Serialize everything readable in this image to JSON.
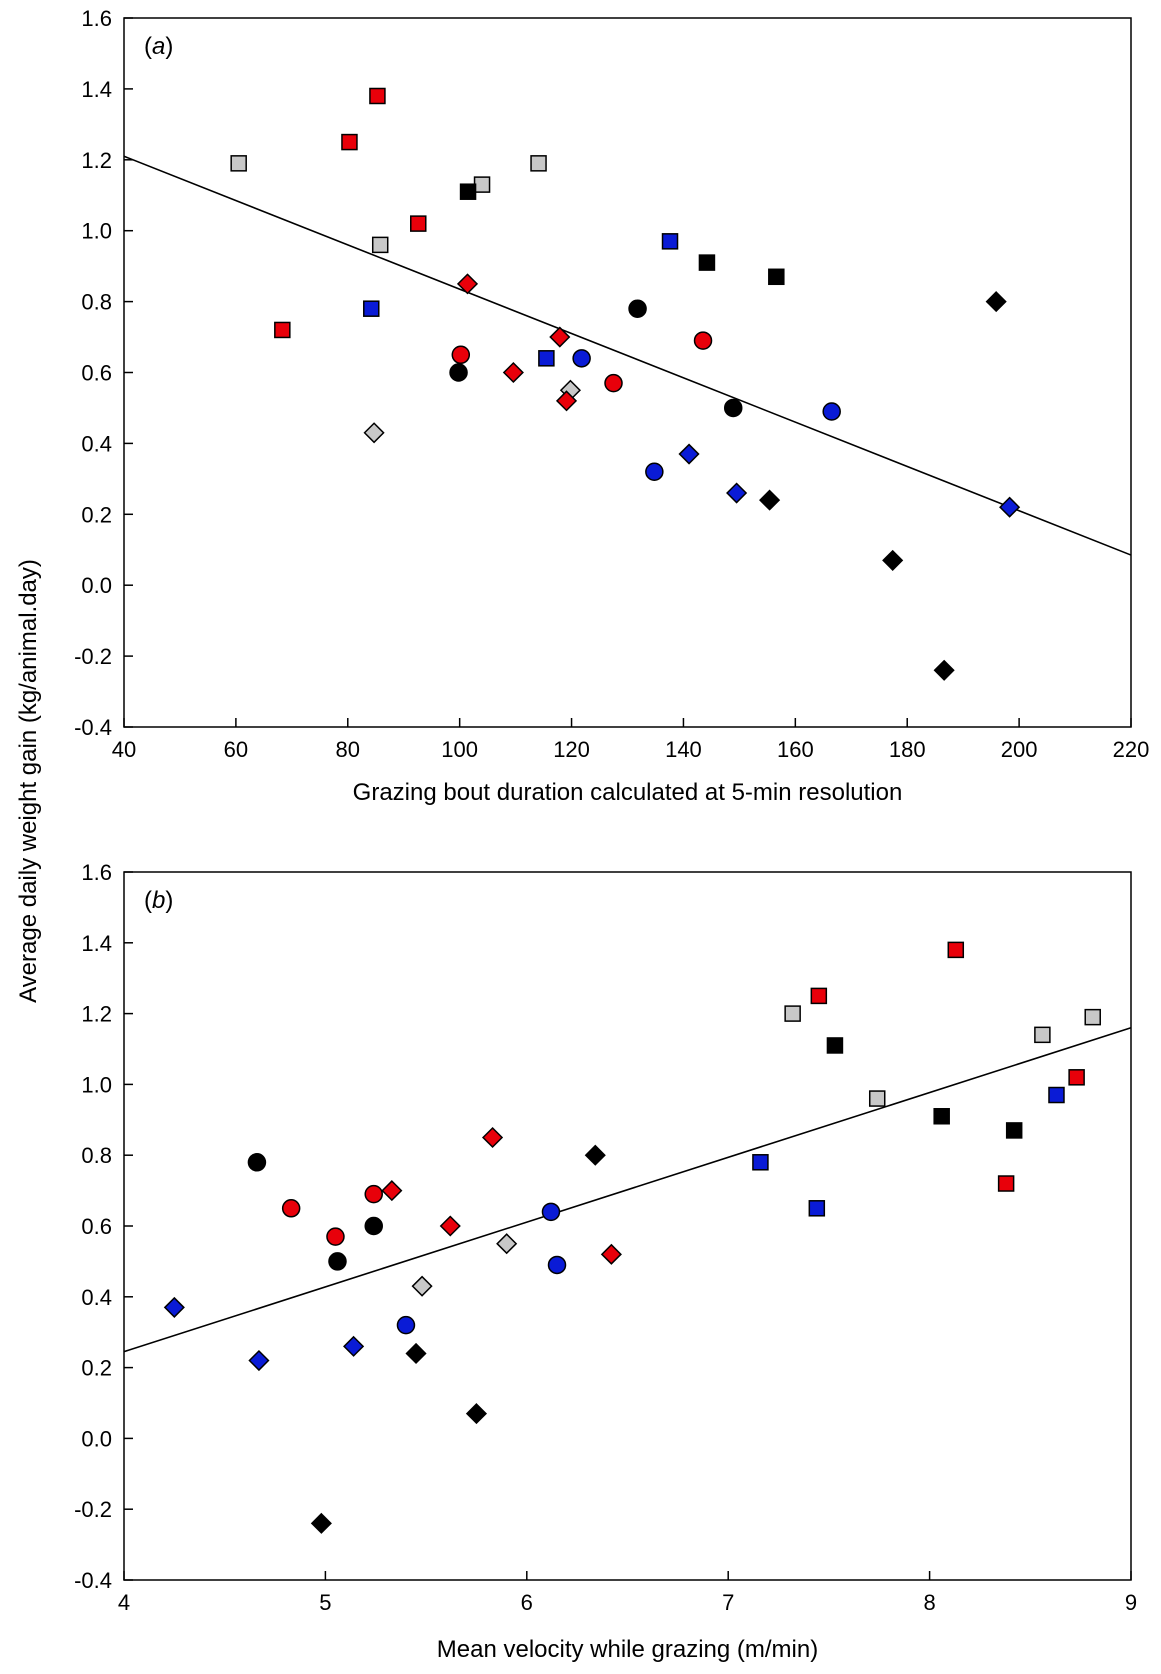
{
  "ylabel": "Average daily weight gain (kg/animal.day)",
  "chart_data": [
    {
      "type": "scatter",
      "panel": "a",
      "xlabel": "Grazing bout duration calculated at 5-min resolution",
      "ylabel": "Average daily weight gain (kg/animal.day)",
      "xlim": [
        40,
        220
      ],
      "ylim": [
        -0.4,
        1.6
      ],
      "xticks": [
        40,
        60,
        80,
        100,
        120,
        140,
        160,
        180,
        200,
        220
      ],
      "yticks": [
        -0.4,
        -0.2,
        0.0,
        0.2,
        0.4,
        0.6,
        0.8,
        1.0,
        1.2,
        1.4,
        1.6
      ],
      "ytick_labels": [
        "-0.4",
        "-0.2",
        "0.0",
        "0.2",
        "0.4",
        "0.6",
        "0.8",
        "1.0",
        "1.2",
        "1.4",
        "1.6"
      ],
      "grid": false,
      "trendline": [
        [
          40,
          1.21
        ],
        [
          220,
          0.085
        ]
      ],
      "colors": {
        "red": "#e8000a",
        "blue": "#0a1bd6",
        "black": "#000000",
        "gray": "#c8c8c8"
      },
      "points": [
        {
          "x": 60.5,
          "y": 1.19,
          "shape": "square",
          "color": "gray"
        },
        {
          "x": 85.8,
          "y": 0.96,
          "shape": "square",
          "color": "gray"
        },
        {
          "x": 104,
          "y": 1.13,
          "shape": "square",
          "color": "gray"
        },
        {
          "x": 114.1,
          "y": 1.19,
          "shape": "square",
          "color": "gray"
        },
        {
          "x": 68.3,
          "y": 0.72,
          "shape": "square",
          "color": "red"
        },
        {
          "x": 80.3,
          "y": 1.25,
          "shape": "square",
          "color": "red"
        },
        {
          "x": 85.3,
          "y": 1.38,
          "shape": "square",
          "color": "red"
        },
        {
          "x": 92.6,
          "y": 1.02,
          "shape": "square",
          "color": "red"
        },
        {
          "x": 101.5,
          "y": 1.11,
          "shape": "square",
          "color": "black"
        },
        {
          "x": 144.2,
          "y": 0.91,
          "shape": "square",
          "color": "black"
        },
        {
          "x": 156.6,
          "y": 0.87,
          "shape": "square",
          "color": "black"
        },
        {
          "x": 84.2,
          "y": 0.78,
          "shape": "square",
          "color": "blue"
        },
        {
          "x": 115.5,
          "y": 0.64,
          "shape": "square",
          "color": "blue"
        },
        {
          "x": 137.6,
          "y": 0.97,
          "shape": "square",
          "color": "blue"
        },
        {
          "x": 99.8,
          "y": 0.6,
          "shape": "circle",
          "color": "black"
        },
        {
          "x": 131.8,
          "y": 0.78,
          "shape": "circle",
          "color": "black"
        },
        {
          "x": 148.9,
          "y": 0.5,
          "shape": "circle",
          "color": "black"
        },
        {
          "x": 100.2,
          "y": 0.65,
          "shape": "circle",
          "color": "red"
        },
        {
          "x": 127.5,
          "y": 0.57,
          "shape": "circle",
          "color": "red"
        },
        {
          "x": 143.5,
          "y": 0.69,
          "shape": "circle",
          "color": "red"
        },
        {
          "x": 121.8,
          "y": 0.64,
          "shape": "circle",
          "color": "blue"
        },
        {
          "x": 134.8,
          "y": 0.32,
          "shape": "circle",
          "color": "blue"
        },
        {
          "x": 166.5,
          "y": 0.49,
          "shape": "circle",
          "color": "blue"
        },
        {
          "x": 84.7,
          "y": 0.43,
          "shape": "diamond",
          "color": "gray"
        },
        {
          "x": 119.8,
          "y": 0.55,
          "shape": "diamond",
          "color": "gray"
        },
        {
          "x": 101.4,
          "y": 0.85,
          "shape": "diamond",
          "color": "red"
        },
        {
          "x": 109.6,
          "y": 0.6,
          "shape": "diamond",
          "color": "red"
        },
        {
          "x": 117.9,
          "y": 0.7,
          "shape": "diamond",
          "color": "red"
        },
        {
          "x": 119.1,
          "y": 0.52,
          "shape": "diamond",
          "color": "red"
        },
        {
          "x": 141,
          "y": 0.37,
          "shape": "diamond",
          "color": "blue"
        },
        {
          "x": 149.5,
          "y": 0.26,
          "shape": "diamond",
          "color": "blue"
        },
        {
          "x": 198.3,
          "y": 0.22,
          "shape": "diamond",
          "color": "blue"
        },
        {
          "x": 155.4,
          "y": 0.24,
          "shape": "diamond",
          "color": "black"
        },
        {
          "x": 177.4,
          "y": 0.07,
          "shape": "diamond",
          "color": "black"
        },
        {
          "x": 186.6,
          "y": -0.24,
          "shape": "diamond",
          "color": "black"
        },
        {
          "x": 195.9,
          "y": 0.8,
          "shape": "diamond",
          "color": "black"
        }
      ]
    },
    {
      "type": "scatter",
      "panel": "b",
      "xlabel": "Mean velocity while grazing (m/min)",
      "ylabel": "Average daily weight gain (kg/animal.day)",
      "xlim": [
        4,
        9
      ],
      "ylim": [
        -0.4,
        1.6
      ],
      "xticks": [
        4,
        5,
        6,
        7,
        8,
        9
      ],
      "yticks": [
        -0.4,
        -0.2,
        0.0,
        0.2,
        0.4,
        0.6,
        0.8,
        1.0,
        1.2,
        1.4,
        1.6
      ],
      "ytick_labels": [
        "-0.4",
        "-0.2",
        "0.0",
        "0.2",
        "0.4",
        "0.6",
        "0.8",
        "1.0",
        "1.2",
        "1.4",
        "1.6"
      ],
      "grid": false,
      "trendline": [
        [
          4,
          0.245
        ],
        [
          9,
          1.16
        ]
      ],
      "colors": {
        "red": "#e8000a",
        "blue": "#0a1bd6",
        "black": "#000000",
        "gray": "#c8c8c8"
      },
      "points": [
        {
          "x": 7.32,
          "y": 1.2,
          "shape": "square",
          "color": "gray"
        },
        {
          "x": 7.74,
          "y": 0.96,
          "shape": "square",
          "color": "gray"
        },
        {
          "x": 8.56,
          "y": 1.14,
          "shape": "square",
          "color": "gray"
        },
        {
          "x": 8.81,
          "y": 1.19,
          "shape": "square",
          "color": "gray"
        },
        {
          "x": 7.45,
          "y": 1.25,
          "shape": "square",
          "color": "red"
        },
        {
          "x": 8.13,
          "y": 1.38,
          "shape": "square",
          "color": "red"
        },
        {
          "x": 8.38,
          "y": 0.72,
          "shape": "square",
          "color": "red"
        },
        {
          "x": 8.73,
          "y": 1.02,
          "shape": "square",
          "color": "red"
        },
        {
          "x": 7.53,
          "y": 1.11,
          "shape": "square",
          "color": "black"
        },
        {
          "x": 8.06,
          "y": 0.91,
          "shape": "square",
          "color": "black"
        },
        {
          "x": 8.42,
          "y": 0.87,
          "shape": "square",
          "color": "black"
        },
        {
          "x": 7.16,
          "y": 0.78,
          "shape": "square",
          "color": "blue"
        },
        {
          "x": 7.44,
          "y": 0.65,
          "shape": "square",
          "color": "blue"
        },
        {
          "x": 8.63,
          "y": 0.97,
          "shape": "square",
          "color": "blue"
        },
        {
          "x": 4.66,
          "y": 0.78,
          "shape": "circle",
          "color": "black"
        },
        {
          "x": 5.06,
          "y": 0.5,
          "shape": "circle",
          "color": "black"
        },
        {
          "x": 5.24,
          "y": 0.6,
          "shape": "circle",
          "color": "black"
        },
        {
          "x": 4.83,
          "y": 0.65,
          "shape": "circle",
          "color": "red"
        },
        {
          "x": 5.05,
          "y": 0.57,
          "shape": "circle",
          "color": "red"
        },
        {
          "x": 5.24,
          "y": 0.69,
          "shape": "circle",
          "color": "red"
        },
        {
          "x": 5.4,
          "y": 0.32,
          "shape": "circle",
          "color": "blue"
        },
        {
          "x": 6.12,
          "y": 0.64,
          "shape": "circle",
          "color": "blue"
        },
        {
          "x": 6.15,
          "y": 0.49,
          "shape": "circle",
          "color": "blue"
        },
        {
          "x": 5.48,
          "y": 0.43,
          "shape": "diamond",
          "color": "gray"
        },
        {
          "x": 5.9,
          "y": 0.55,
          "shape": "diamond",
          "color": "gray"
        },
        {
          "x": 5.33,
          "y": 0.7,
          "shape": "diamond",
          "color": "red"
        },
        {
          "x": 5.62,
          "y": 0.6,
          "shape": "diamond",
          "color": "red"
        },
        {
          "x": 5.83,
          "y": 0.85,
          "shape": "diamond",
          "color": "red"
        },
        {
          "x": 6.42,
          "y": 0.52,
          "shape": "diamond",
          "color": "red"
        },
        {
          "x": 4.25,
          "y": 0.37,
          "shape": "diamond",
          "color": "blue"
        },
        {
          "x": 4.67,
          "y": 0.22,
          "shape": "diamond",
          "color": "blue"
        },
        {
          "x": 5.14,
          "y": 0.26,
          "shape": "diamond",
          "color": "blue"
        },
        {
          "x": 4.98,
          "y": -0.24,
          "shape": "diamond",
          "color": "black"
        },
        {
          "x": 5.45,
          "y": 0.24,
          "shape": "diamond",
          "color": "black"
        },
        {
          "x": 5.75,
          "y": 0.07,
          "shape": "diamond",
          "color": "black"
        },
        {
          "x": 6.34,
          "y": 0.8,
          "shape": "diamond",
          "color": "black"
        }
      ]
    }
  ]
}
